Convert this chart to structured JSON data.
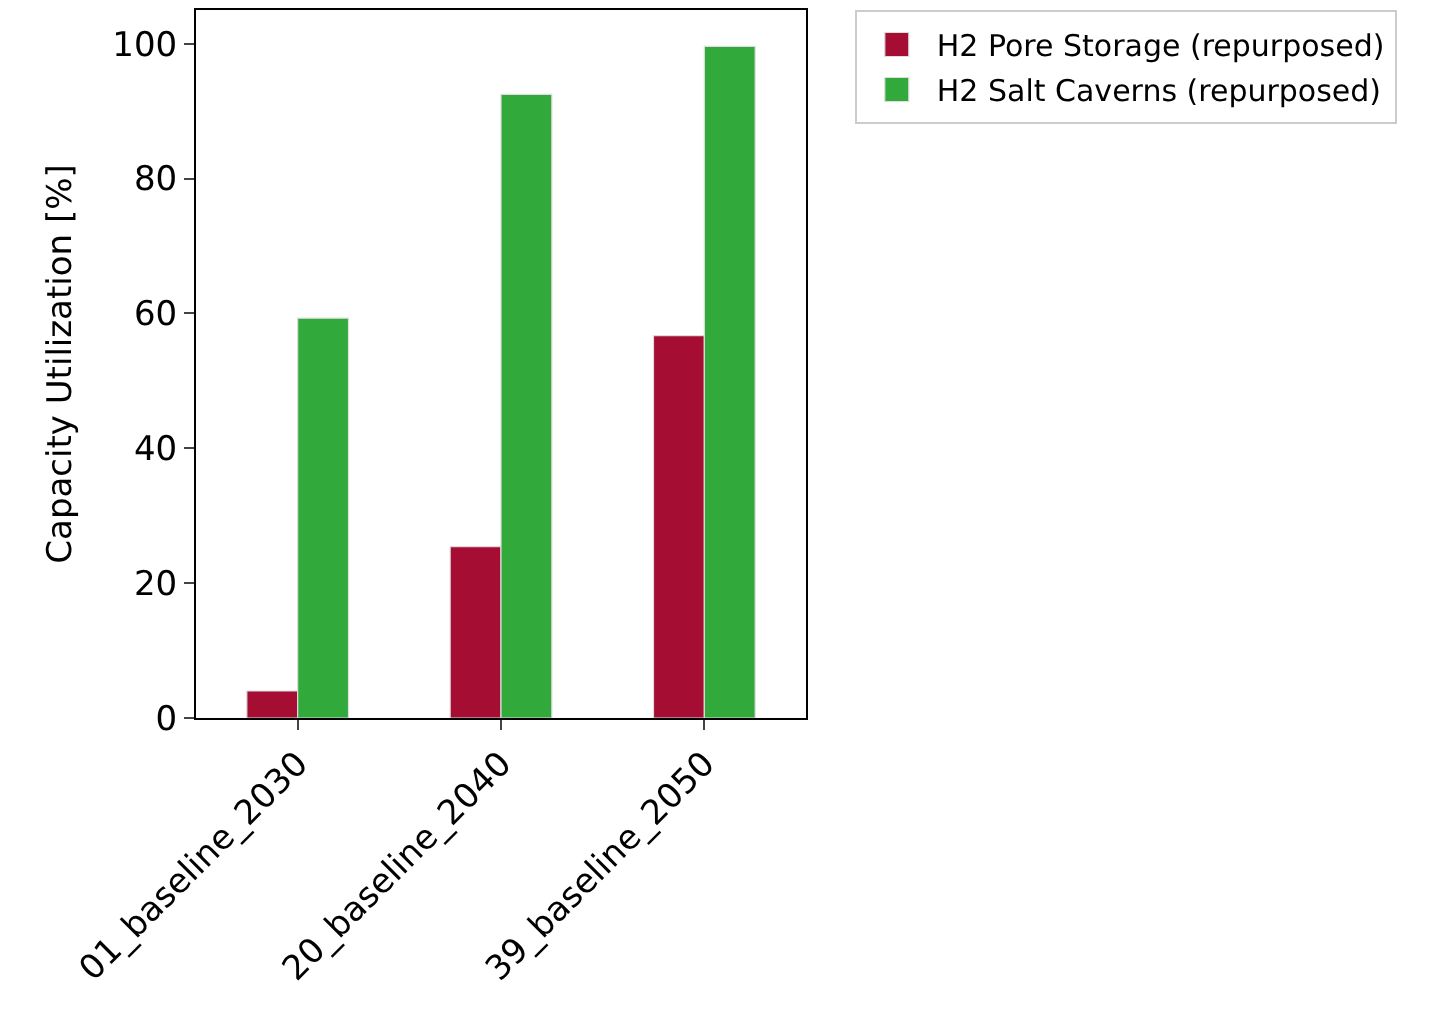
{
  "chart_data": {
    "type": "bar",
    "ylabel": "Capacity Utilization [%]",
    "categories": [
      "01_baseline_2030",
      "20_baseline_2040",
      "39_baseline_2050"
    ],
    "series": [
      {
        "name": "H2 Pore Storage (repurposed)",
        "color": "#a50d33",
        "values": [
          4.0,
          25.4,
          56.7
        ]
      },
      {
        "name": "H2 Salt Caverns (repurposed)",
        "color": "#31a93b",
        "values": [
          59.3,
          92.5,
          99.6
        ]
      }
    ],
    "ylim": [
      0,
      105
    ],
    "yticks": [
      0,
      20,
      40,
      60,
      80,
      100
    ],
    "legend": "top right"
  }
}
